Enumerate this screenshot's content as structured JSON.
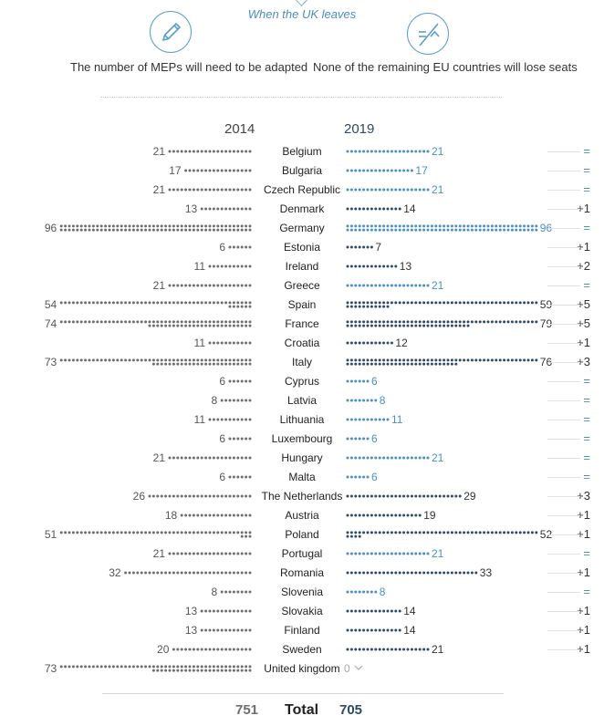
{
  "header": {
    "caption": "When the UK leaves",
    "left_text": "The number of MEPs will need to be adapted",
    "right_text": "None of the remaining EU countries will lose seats",
    "left_icon": "pencil-icon",
    "right_icon": "not-equal-icon"
  },
  "colors": {
    "dot_2014": "#6e6e6e",
    "dot_2019": "#2f4a66",
    "dot_2019_light": "#4a90c2",
    "accent": "#4a8fc0"
  },
  "chart_data": {
    "type": "dot-matrix",
    "series_labels": [
      "2014",
      "2019"
    ],
    "rows": [
      {
        "country": "Belgium",
        "seats_2014": 21,
        "seats_2019": 21,
        "change": "="
      },
      {
        "country": "Bulgaria",
        "seats_2014": 17,
        "seats_2019": 17,
        "change": "="
      },
      {
        "country": "Czech Republic",
        "seats_2014": 21,
        "seats_2019": 21,
        "change": "="
      },
      {
        "country": "Denmark",
        "seats_2014": 13,
        "seats_2019": 14,
        "change": "+1"
      },
      {
        "country": "Germany",
        "seats_2014": 96,
        "seats_2019": 96,
        "change": "="
      },
      {
        "country": "Estonia",
        "seats_2014": 6,
        "seats_2019": 7,
        "change": "+1"
      },
      {
        "country": "Ireland",
        "seats_2014": 11,
        "seats_2019": 13,
        "change": "+2"
      },
      {
        "country": "Greece",
        "seats_2014": 21,
        "seats_2019": 21,
        "change": "="
      },
      {
        "country": "Spain",
        "seats_2014": 54,
        "seats_2019": 59,
        "change": "+5"
      },
      {
        "country": "France",
        "seats_2014": 74,
        "seats_2019": 79,
        "change": "+5"
      },
      {
        "country": "Croatia",
        "seats_2014": 11,
        "seats_2019": 12,
        "change": "+1"
      },
      {
        "country": "Italy",
        "seats_2014": 73,
        "seats_2019": 76,
        "change": "+3"
      },
      {
        "country": "Cyprus",
        "seats_2014": 6,
        "seats_2019": 6,
        "change": "="
      },
      {
        "country": "Latvia",
        "seats_2014": 8,
        "seats_2019": 8,
        "change": "="
      },
      {
        "country": "Lithuania",
        "seats_2014": 11,
        "seats_2019": 11,
        "change": "="
      },
      {
        "country": "Luxembourg",
        "seats_2014": 6,
        "seats_2019": 6,
        "change": "="
      },
      {
        "country": "Hungary",
        "seats_2014": 21,
        "seats_2019": 21,
        "change": "="
      },
      {
        "country": "Malta",
        "seats_2014": 6,
        "seats_2019": 6,
        "change": "="
      },
      {
        "country": "The Netherlands",
        "seats_2014": 26,
        "seats_2019": 29,
        "change": "+3"
      },
      {
        "country": "Austria",
        "seats_2014": 18,
        "seats_2019": 19,
        "change": "+1"
      },
      {
        "country": "Poland",
        "seats_2014": 51,
        "seats_2019": 52,
        "change": "+1"
      },
      {
        "country": "Portugal",
        "seats_2014": 21,
        "seats_2019": 21,
        "change": "="
      },
      {
        "country": "Romania",
        "seats_2014": 32,
        "seats_2019": 33,
        "change": "+1"
      },
      {
        "country": "Slovenia",
        "seats_2014": 8,
        "seats_2019": 8,
        "change": "="
      },
      {
        "country": "Slovakia",
        "seats_2014": 13,
        "seats_2019": 14,
        "change": "+1"
      },
      {
        "country": "Finland",
        "seats_2014": 13,
        "seats_2019": 14,
        "change": "+1"
      },
      {
        "country": "Sweden",
        "seats_2014": 20,
        "seats_2019": 21,
        "change": "+1"
      },
      {
        "country": "United kingdom",
        "seats_2014": 73,
        "seats_2019": 0,
        "change": ""
      }
    ],
    "total_label": "Total",
    "total_2014": 751,
    "total_2019": 705
  }
}
